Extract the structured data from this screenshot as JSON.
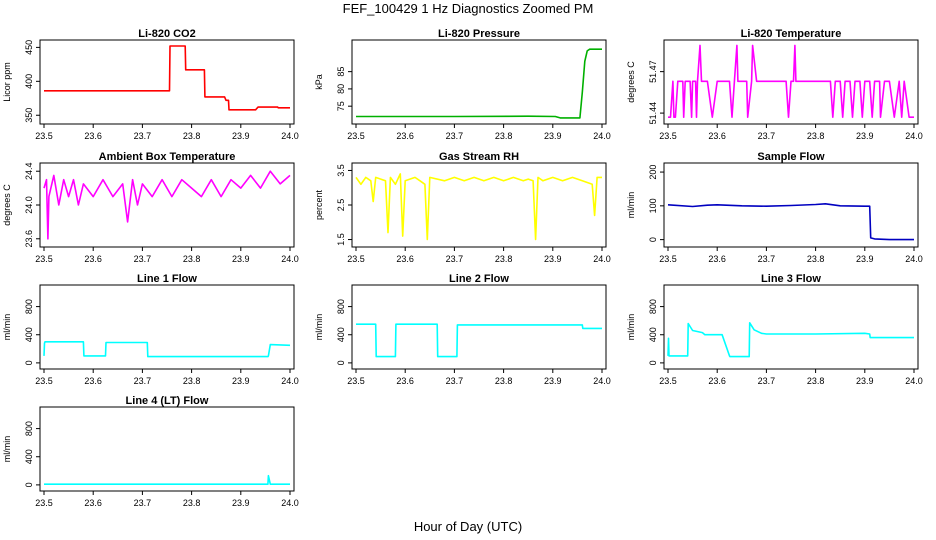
{
  "figure": {
    "title": "FEF_100429  1 Hz Diagnostics Zoomed PM",
    "xlabel": "Hour of Day (UTC)"
  },
  "chart_data": [
    {
      "type": "line",
      "title": "Li-820 CO2",
      "ylabel": "Licor ppm",
      "color": "#ff0000",
      "xlim": [
        23.5,
        24.0
      ],
      "xticks": [
        "23.5",
        "23.6",
        "23.7",
        "23.8",
        "23.9",
        "24.0"
      ],
      "ylim": [
        343,
        455
      ],
      "yticks": [
        "350",
        "400",
        "450"
      ],
      "series": [
        {
          "x": [
            23.5,
            23.755,
            23.756,
            23.787,
            23.788,
            23.826,
            23.827,
            23.867,
            23.87,
            23.875,
            23.876,
            23.93,
            23.935,
            23.975,
            23.976,
            24.0
          ],
          "y": [
            386,
            386,
            452,
            452,
            417,
            417,
            377,
            377,
            372,
            372,
            358,
            358,
            362,
            362,
            361,
            361
          ]
        }
      ]
    },
    {
      "type": "line",
      "title": "Li-820 Pressure",
      "ylabel": "kPa",
      "color": "#00b000",
      "xlim": [
        23.5,
        24.0
      ],
      "xticks": [
        "23.5",
        "23.6",
        "23.7",
        "23.8",
        "23.9",
        "24.0"
      ],
      "ylim": [
        71,
        93
      ],
      "yticks": [
        "75",
        "80",
        "85"
      ],
      "series": [
        {
          "x": [
            23.5,
            23.7,
            23.85,
            23.905,
            23.915,
            23.955,
            23.96,
            23.965,
            23.97,
            23.975,
            24.0
          ],
          "y": [
            72.0,
            72.0,
            72.1,
            72.0,
            71.6,
            71.6,
            79,
            88,
            91,
            91.5,
            91.5
          ]
        }
      ]
    },
    {
      "type": "line",
      "title": "Li-820 Temperature",
      "ylabel": "degrees C",
      "color": "#ff00ff",
      "xlim": [
        23.5,
        24.0
      ],
      "xticks": [
        "23.5",
        "23.6",
        "23.7",
        "23.8",
        "23.9",
        "24.0"
      ],
      "ylim": [
        51.435,
        51.49
      ],
      "yticks": [
        "51.44",
        "51.47"
      ],
      "series": [
        {
          "x": [
            23.5,
            23.505,
            23.51,
            23.512,
            23.515,
            23.52,
            23.53,
            23.532,
            23.535,
            23.54,
            23.545,
            23.548,
            23.55,
            23.556,
            23.558,
            23.56,
            23.565,
            23.568,
            23.572,
            23.575,
            23.58,
            23.59,
            23.6,
            23.602,
            23.61,
            23.62,
            23.625,
            23.63,
            23.635,
            23.64,
            23.642,
            23.645,
            23.65,
            23.66,
            23.662,
            23.67,
            23.672,
            23.68,
            23.69,
            23.7,
            23.71,
            23.72,
            23.73,
            23.74,
            23.745,
            23.75,
            23.755,
            23.758,
            23.76,
            23.77,
            23.775,
            23.78,
            23.79,
            23.8,
            23.81,
            23.82,
            23.83,
            23.835,
            23.84,
            23.85,
            23.855,
            23.86,
            23.87,
            23.875,
            23.88,
            23.89,
            23.895,
            23.9,
            23.91,
            23.915,
            23.92,
            23.93,
            23.932,
            23.94,
            23.945,
            23.95,
            23.96,
            23.97,
            23.975,
            23.98,
            23.99,
            24.0
          ],
          "y": [
            51.437,
            51.437,
            51.463,
            51.437,
            51.437,
            51.463,
            51.463,
            51.437,
            51.463,
            51.463,
            51.463,
            51.437,
            51.463,
            51.463,
            51.437,
            51.463,
            51.489,
            51.463,
            51.463,
            51.463,
            51.463,
            51.437,
            51.463,
            51.463,
            51.463,
            51.463,
            51.463,
            51.437,
            51.463,
            51.489,
            51.463,
            51.463,
            51.463,
            51.463,
            51.437,
            51.463,
            51.489,
            51.463,
            51.463,
            51.463,
            51.463,
            51.463,
            51.463,
            51.463,
            51.437,
            51.463,
            51.463,
            51.489,
            51.463,
            51.463,
            51.463,
            51.463,
            51.463,
            51.463,
            51.463,
            51.463,
            51.463,
            51.437,
            51.463,
            51.463,
            51.437,
            51.463,
            51.463,
            51.437,
            51.463,
            51.463,
            51.437,
            51.463,
            51.463,
            51.437,
            51.463,
            51.463,
            51.437,
            51.463,
            51.463,
            51.463,
            51.437,
            51.463,
            51.437,
            51.463,
            51.437,
            51.437
          ]
        }
      ]
    },
    {
      "type": "line",
      "title": "Ambient Box Temperature",
      "ylabel": "degrees C",
      "color": "#ff00ff",
      "xlim": [
        23.5,
        24.0
      ],
      "xticks": [
        "23.5",
        "23.6",
        "23.7",
        "23.8",
        "23.9",
        "24.0"
      ],
      "ylim": [
        23.55,
        24.45
      ],
      "yticks": [
        "23.6",
        "24.0",
        "24.4"
      ],
      "series": [
        {
          "x": [
            23.5,
            23.505,
            23.508,
            23.51,
            23.52,
            23.53,
            23.54,
            23.55,
            23.56,
            23.57,
            23.58,
            23.6,
            23.62,
            23.64,
            23.66,
            23.67,
            23.68,
            23.69,
            23.7,
            23.72,
            23.74,
            23.76,
            23.78,
            23.8,
            23.82,
            23.84,
            23.86,
            23.88,
            23.9,
            23.92,
            23.94,
            23.96,
            23.98,
            24.0
          ],
          "y": [
            24.2,
            24.3,
            23.6,
            24.1,
            24.35,
            24.0,
            24.3,
            24.1,
            24.3,
            24.0,
            24.25,
            24.1,
            24.3,
            24.1,
            24.25,
            23.8,
            24.3,
            24.0,
            24.25,
            24.1,
            24.3,
            24.1,
            24.3,
            24.2,
            24.1,
            24.3,
            24.1,
            24.3,
            24.2,
            24.35,
            24.2,
            24.4,
            24.25,
            24.35
          ]
        }
      ]
    },
    {
      "type": "line",
      "title": "Gas Stream RH",
      "ylabel": "percent",
      "color": "#ffff00",
      "xlim": [
        23.5,
        24.0
      ],
      "xticks": [
        "23.5",
        "23.6",
        "23.7",
        "23.8",
        "23.9",
        "24.0"
      ],
      "ylim": [
        1.4,
        3.6
      ],
      "yticks": [
        "1.5",
        "2.5",
        "3.5"
      ],
      "series": [
        {
          "x": [
            23.5,
            23.51,
            23.52,
            23.53,
            23.535,
            23.54,
            23.56,
            23.565,
            23.57,
            23.58,
            23.59,
            23.595,
            23.6,
            23.62,
            23.63,
            23.64,
            23.645,
            23.65,
            23.68,
            23.7,
            23.72,
            23.74,
            23.76,
            23.78,
            23.8,
            23.82,
            23.84,
            23.85,
            23.86,
            23.865,
            23.87,
            23.88,
            23.9,
            23.92,
            23.94,
            23.96,
            23.98,
            23.985,
            23.99,
            24.0
          ],
          "y": [
            3.3,
            3.1,
            3.3,
            3.2,
            2.6,
            3.3,
            3.2,
            1.7,
            3.3,
            3.1,
            3.4,
            1.6,
            3.2,
            3.3,
            3.2,
            3.1,
            1.5,
            3.3,
            3.2,
            3.3,
            3.2,
            3.3,
            3.2,
            3.3,
            3.2,
            3.3,
            3.2,
            3.25,
            3.2,
            1.5,
            3.3,
            3.2,
            3.3,
            3.2,
            3.3,
            3.2,
            3.1,
            2.2,
            3.3,
            3.3
          ]
        }
      ]
    },
    {
      "type": "line",
      "title": "Sample Flow",
      "ylabel": "ml/min",
      "color": "#0000c0",
      "xlim": [
        23.5,
        24.0
      ],
      "xticks": [
        "23.5",
        "23.6",
        "23.7",
        "23.8",
        "23.9",
        "24.0"
      ],
      "ylim": [
        -10,
        215
      ],
      "yticks": [
        "0",
        "100",
        "200"
      ],
      "series": [
        {
          "x": [
            23.5,
            23.55,
            23.58,
            23.6,
            23.65,
            23.7,
            23.75,
            23.8,
            23.82,
            23.85,
            23.9,
            23.91,
            23.912,
            23.92,
            23.95,
            24.0
          ],
          "y": [
            103,
            98,
            102,
            103,
            100,
            99,
            101,
            104,
            106,
            100,
            99,
            99,
            5,
            2,
            0,
            0
          ]
        }
      ]
    },
    {
      "type": "line",
      "title": "Line 1 Flow",
      "ylabel": "ml/min",
      "color": "#00ffff",
      "xlim": [
        23.5,
        24.0
      ],
      "xticks": [
        "23.5",
        "23.6",
        "23.7",
        "23.8",
        "23.9",
        "24.0"
      ],
      "ylim": [
        -30,
        1050
      ],
      "yticks": [
        "0",
        "400",
        "800"
      ],
      "series": [
        {
          "x": [
            23.5,
            23.501,
            23.502,
            23.58,
            23.581,
            23.625,
            23.626,
            23.71,
            23.711,
            23.955,
            23.956,
            23.96,
            24.0
          ],
          "y": [
            100,
            280,
            300,
            300,
            100,
            100,
            290,
            290,
            90,
            90,
            100,
            260,
            250
          ]
        }
      ]
    },
    {
      "type": "line",
      "title": "Line 2 Flow",
      "ylabel": "ml/min",
      "color": "#00ffff",
      "xlim": [
        23.5,
        24.0
      ],
      "xticks": [
        "23.5",
        "23.6",
        "23.7",
        "23.8",
        "23.9",
        "24.0"
      ],
      "ylim": [
        -30,
        1050
      ],
      "yticks": [
        "0",
        "400",
        "800"
      ],
      "series": [
        {
          "x": [
            23.5,
            23.54,
            23.541,
            23.58,
            23.581,
            23.665,
            23.666,
            23.705,
            23.706,
            23.96,
            23.961,
            24.0
          ],
          "y": [
            550,
            550,
            90,
            90,
            550,
            550,
            90,
            90,
            540,
            540,
            490,
            490
          ]
        }
      ]
    },
    {
      "type": "line",
      "title": "Line 3 Flow",
      "ylabel": "ml/min",
      "color": "#00ffff",
      "xlim": [
        23.5,
        24.0
      ],
      "xticks": [
        "23.5",
        "23.6",
        "23.7",
        "23.8",
        "23.9",
        "24.0"
      ],
      "ylim": [
        -30,
        1050
      ],
      "yticks": [
        "0",
        "400",
        "800"
      ],
      "series": [
        {
          "x": [
            23.5,
            23.501,
            23.502,
            23.54,
            23.541,
            23.55,
            23.57,
            23.575,
            23.61,
            23.625,
            23.626,
            23.665,
            23.666,
            23.675,
            23.69,
            23.7,
            23.8,
            23.9,
            23.91,
            23.911,
            24.0
          ],
          "y": [
            100,
            350,
            100,
            100,
            560,
            460,
            430,
            400,
            400,
            100,
            90,
            90,
            570,
            470,
            420,
            410,
            410,
            420,
            410,
            360,
            360
          ]
        }
      ]
    },
    {
      "type": "line",
      "title": "Line 4 (LT) Flow",
      "ylabel": "ml/min",
      "color": "#00ffff",
      "xlim": [
        23.5,
        24.0
      ],
      "xticks": [
        "23.5",
        "23.6",
        "23.7",
        "23.8",
        "23.9",
        "24.0"
      ],
      "ylim": [
        -30,
        1050
      ],
      "yticks": [
        "0",
        "400",
        "800"
      ],
      "series": [
        {
          "x": [
            23.5,
            23.955,
            23.956,
            23.96,
            23.961,
            24.0
          ],
          "y": [
            10,
            10,
            130,
            10,
            10,
            10
          ]
        }
      ]
    }
  ]
}
